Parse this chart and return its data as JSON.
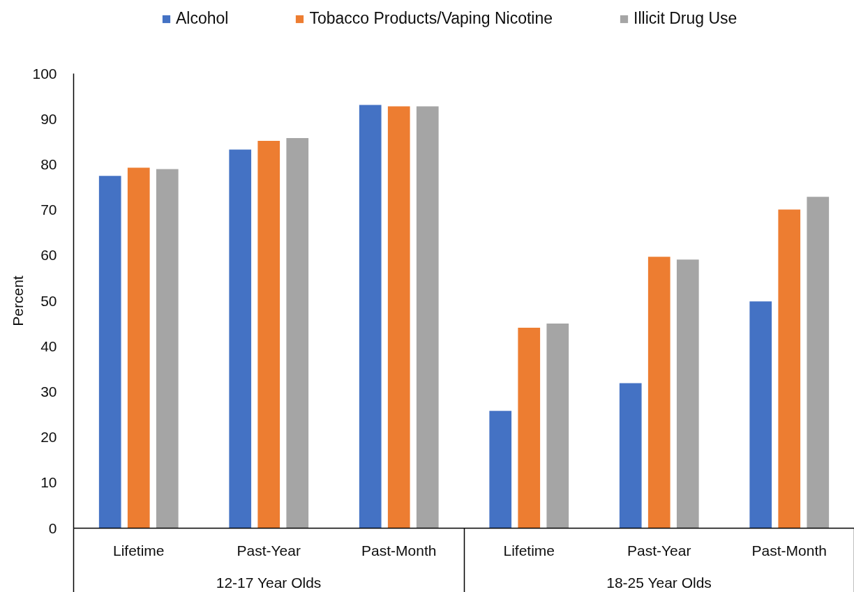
{
  "chart_data": {
    "type": "bar",
    "ylabel": "Percent",
    "categories": [
      "Lifetime",
      "Past-Year",
      "Past-Month",
      "Lifetime",
      "Past-Year",
      "Past-Month"
    ],
    "series": [
      {
        "name": "Alcohol",
        "color": "#4472c4",
        "values": [
          77.5,
          83.3,
          93.1,
          25.8,
          31.9,
          49.9
        ]
      },
      {
        "name": "Tobacco Products/Vaping Nicotine",
        "color": "#ed7d31",
        "values": [
          79.3,
          85.2,
          92.8,
          44.1,
          59.7,
          70.1
        ]
      },
      {
        "name": "Illicit Drug Use",
        "color": "#a5a5a5",
        "values": [
          79.0,
          85.8,
          92.8,
          45.0,
          59.1,
          72.9
        ]
      }
    ],
    "ylim": [
      0,
      100
    ],
    "yticks": [
      0,
      10,
      20,
      30,
      40,
      50,
      60,
      70,
      80,
      90,
      100
    ],
    "legend": "top",
    "annotations": [
      "12-17 Year Olds",
      "18-25 Year Olds"
    ]
  }
}
